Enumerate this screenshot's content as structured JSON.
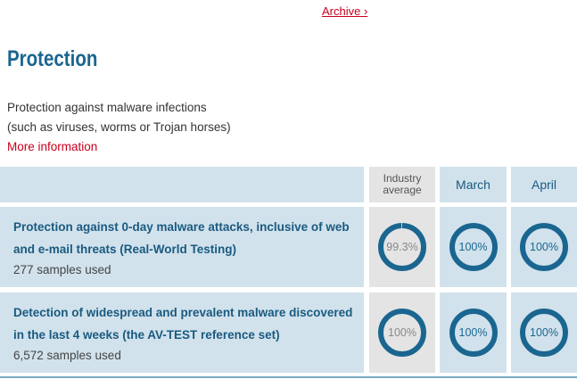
{
  "archive_link": "Archive ›",
  "title": "Protection",
  "description": [
    "Protection against malware infections",
    "(such as viruses, worms or Trojan horses)"
  ],
  "more_info": "More information",
  "colors": {
    "ring": "#1a6690",
    "header_bg": "#d1e2ec",
    "industry_bg": "#e4e4e4",
    "link": "#c8001e"
  },
  "columns": [
    "Industry average",
    "March",
    "April"
  ],
  "rows": [
    {
      "title": "Protection against 0-day malware attacks, inclusive of web and e-mail threats (Real-World Testing)",
      "samples": "277 samples used",
      "values": [
        {
          "label": "99.3%",
          "pct": 99.3
        },
        {
          "label": "100%",
          "pct": 100
        },
        {
          "label": "100%",
          "pct": 100
        }
      ]
    },
    {
      "title": "Detection of widespread and prevalent malware discovered in the last 4 weeks (the AV-TEST reference set)",
      "samples": "6,572 samples used",
      "values": [
        {
          "label": "100%",
          "pct": 100
        },
        {
          "label": "100%",
          "pct": 100
        },
        {
          "label": "100%",
          "pct": 100
        }
      ]
    }
  ]
}
